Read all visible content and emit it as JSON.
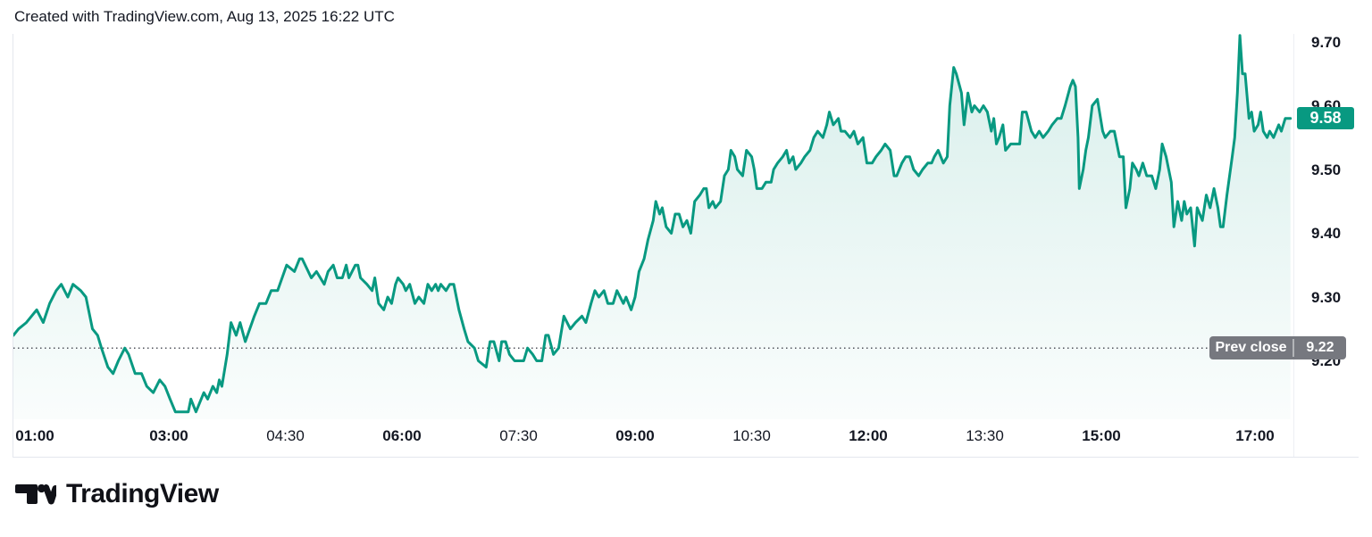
{
  "attribution": "Created with TradingView.com, Aug 13, 2025 16:22 UTC",
  "colors": {
    "line": "#089981",
    "area_top": "rgba(8,153,129,0.16)",
    "area_bottom": "rgba(8,153,129,0.02)",
    "current_badge_bg": "#089981",
    "prev_badge_bg": "#76787f",
    "prev_close_line": "#51535c",
    "axis_text": "#131722",
    "border": "#e4e7ee"
  },
  "price_axis": {
    "ticks": [
      {
        "label": "9.70",
        "price": 9.7
      },
      {
        "label": "9.60",
        "price": 9.6
      },
      {
        "label": "9.50",
        "price": 9.5
      },
      {
        "label": "9.40",
        "price": 9.4
      },
      {
        "label": "9.30",
        "price": 9.3
      },
      {
        "label": "9.20",
        "price": 9.2
      }
    ],
    "current_price": "9.58",
    "prev_close_label": "Prev close",
    "prev_close_value": "9.22"
  },
  "time_axis": {
    "ticks": [
      {
        "label": "01:00",
        "bold": true
      },
      {
        "label": "03:00",
        "bold": true
      },
      {
        "label": "04:30",
        "bold": false
      },
      {
        "label": "06:00",
        "bold": true
      },
      {
        "label": "07:30",
        "bold": false
      },
      {
        "label": "09:00",
        "bold": true
      },
      {
        "label": "10:30",
        "bold": false
      },
      {
        "label": "12:00",
        "bold": true
      },
      {
        "label": "13:30",
        "bold": false
      },
      {
        "label": "15:00",
        "bold": true
      },
      {
        "label": "17:00",
        "bold": true
      }
    ]
  },
  "footer": {
    "brand": "TradingView",
    "logo_icon": "tradingview-mark"
  },
  "chart_data": {
    "type": "area",
    "title": "",
    "xlabel": "",
    "ylabel": "",
    "grid": false,
    "legend": false,
    "ylim": [
      9.1,
      9.72
    ],
    "x_range": [
      "01:00",
      "17:28"
    ],
    "prev_close": 9.22,
    "last_price": 9.58,
    "points": [
      [
        "01:00",
        9.24
      ],
      [
        "01:04",
        9.25
      ],
      [
        "01:10",
        9.26
      ],
      [
        "01:18",
        9.28
      ],
      [
        "01:23",
        9.26
      ],
      [
        "01:28",
        9.29
      ],
      [
        "01:33",
        9.31
      ],
      [
        "01:37",
        9.32
      ],
      [
        "01:42",
        9.3
      ],
      [
        "01:46",
        9.32
      ],
      [
        "01:52",
        9.31
      ],
      [
        "01:56",
        9.3
      ],
      [
        "02:01",
        9.25
      ],
      [
        "02:05",
        9.24
      ],
      [
        "02:08",
        9.22
      ],
      [
        "02:13",
        9.19
      ],
      [
        "02:17",
        9.18
      ],
      [
        "02:21",
        9.2
      ],
      [
        "02:26",
        9.22
      ],
      [
        "02:29",
        9.21
      ],
      [
        "02:34",
        9.18
      ],
      [
        "02:39",
        9.18
      ],
      [
        "02:43",
        9.16
      ],
      [
        "02:48",
        9.15
      ],
      [
        "02:53",
        9.17
      ],
      [
        "02:57",
        9.16
      ],
      [
        "03:01",
        9.14
      ],
      [
        "03:05",
        9.12
      ],
      [
        "03:08",
        9.12
      ],
      [
        "03:12",
        9.12
      ],
      [
        "03:15",
        9.12
      ],
      [
        "03:17",
        9.14
      ],
      [
        "03:21",
        9.12
      ],
      [
        "03:27",
        9.15
      ],
      [
        "03:30",
        9.14
      ],
      [
        "03:34",
        9.16
      ],
      [
        "03:37",
        9.15
      ],
      [
        "03:39",
        9.17
      ],
      [
        "03:41",
        9.16
      ],
      [
        "03:45",
        9.21
      ],
      [
        "03:48",
        9.26
      ],
      [
        "03:52",
        9.24
      ],
      [
        "03:55",
        9.26
      ],
      [
        "03:59",
        9.23
      ],
      [
        "04:06",
        9.27
      ],
      [
        "04:10",
        9.29
      ],
      [
        "04:15",
        9.29
      ],
      [
        "04:19",
        9.31
      ],
      [
        "04:24",
        9.31
      ],
      [
        "04:31",
        9.35
      ],
      [
        "04:37",
        9.34
      ],
      [
        "04:41",
        9.36
      ],
      [
        "04:43",
        9.36
      ],
      [
        "04:50",
        9.33
      ],
      [
        "04:54",
        9.34
      ],
      [
        "05:00",
        9.32
      ],
      [
        "05:03",
        9.34
      ],
      [
        "05:07",
        9.35
      ],
      [
        "05:10",
        9.33
      ],
      [
        "05:14",
        9.33
      ],
      [
        "05:17",
        9.35
      ],
      [
        "05:19",
        9.33
      ],
      [
        "05:24",
        9.35
      ],
      [
        "05:26",
        9.35
      ],
      [
        "05:28",
        9.33
      ],
      [
        "05:33",
        9.32
      ],
      [
        "05:37",
        9.31
      ],
      [
        "05:39",
        9.33
      ],
      [
        "05:42",
        9.29
      ],
      [
        "05:46",
        9.28
      ],
      [
        "05:49",
        9.3
      ],
      [
        "05:52",
        9.29
      ],
      [
        "05:55",
        9.32
      ],
      [
        "05:57",
        9.33
      ],
      [
        "06:01",
        9.32
      ],
      [
        "06:03",
        9.31
      ],
      [
        "06:06",
        9.32
      ],
      [
        "06:10",
        9.29
      ],
      [
        "06:13",
        9.3
      ],
      [
        "06:17",
        9.29
      ],
      [
        "06:20",
        9.32
      ],
      [
        "06:23",
        9.31
      ],
      [
        "06:26",
        9.32
      ],
      [
        "06:28",
        9.31
      ],
      [
        "06:30",
        9.32
      ],
      [
        "06:34",
        9.31
      ],
      [
        "06:37",
        9.32
      ],
      [
        "06:40",
        9.32
      ],
      [
        "06:44",
        9.28
      ],
      [
        "06:48",
        9.25
      ],
      [
        "06:51",
        9.23
      ],
      [
        "06:56",
        9.22
      ],
      [
        "06:59",
        9.2
      ],
      [
        "07:05",
        9.19
      ],
      [
        "07:08",
        9.23
      ],
      [
        "07:11",
        9.23
      ],
      [
        "07:15",
        9.2
      ],
      [
        "07:17",
        9.23
      ],
      [
        "07:20",
        9.23
      ],
      [
        "07:23",
        9.21
      ],
      [
        "07:27",
        9.2
      ],
      [
        "07:30",
        9.2
      ],
      [
        "07:34",
        9.2
      ],
      [
        "07:37",
        9.22
      ],
      [
        "07:41",
        9.21
      ],
      [
        "07:44",
        9.2
      ],
      [
        "07:48",
        9.2
      ],
      [
        "07:51",
        9.24
      ],
      [
        "07:53",
        9.24
      ],
      [
        "07:57",
        9.21
      ],
      [
        "08:01",
        9.22
      ],
      [
        "08:05",
        9.27
      ],
      [
        "08:10",
        9.25
      ],
      [
        "08:14",
        9.26
      ],
      [
        "08:19",
        9.27
      ],
      [
        "08:22",
        9.26
      ],
      [
        "08:26",
        9.29
      ],
      [
        "08:29",
        9.31
      ],
      [
        "08:32",
        9.3
      ],
      [
        "08:36",
        9.31
      ],
      [
        "08:39",
        9.29
      ],
      [
        "08:43",
        9.29
      ],
      [
        "08:46",
        9.31
      ],
      [
        "08:51",
        9.29
      ],
      [
        "08:53",
        9.3
      ],
      [
        "08:57",
        9.28
      ],
      [
        "09:00",
        9.3
      ],
      [
        "09:03",
        9.34
      ],
      [
        "09:07",
        9.36
      ],
      [
        "09:10",
        9.39
      ],
      [
        "09:14",
        9.42
      ],
      [
        "09:16",
        9.45
      ],
      [
        "09:19",
        9.43
      ],
      [
        "09:21",
        9.44
      ],
      [
        "09:24",
        9.41
      ],
      [
        "09:28",
        9.4
      ],
      [
        "09:31",
        9.43
      ],
      [
        "09:34",
        9.43
      ],
      [
        "09:37",
        9.41
      ],
      [
        "09:40",
        9.42
      ],
      [
        "09:43",
        9.4
      ],
      [
        "09:46",
        9.45
      ],
      [
        "09:50",
        9.46
      ],
      [
        "09:53",
        9.47
      ],
      [
        "09:55",
        9.47
      ],
      [
        "09:57",
        9.44
      ],
      [
        "10:00",
        9.45
      ],
      [
        "10:02",
        9.44
      ],
      [
        "10:06",
        9.45
      ],
      [
        "10:09",
        9.49
      ],
      [
        "10:12",
        9.5
      ],
      [
        "10:14",
        9.53
      ],
      [
        "10:17",
        9.52
      ],
      [
        "10:19",
        9.5
      ],
      [
        "10:23",
        9.49
      ],
      [
        "10:26",
        9.53
      ],
      [
        "10:30",
        9.52
      ],
      [
        "10:32",
        9.5
      ],
      [
        "10:34",
        9.47
      ],
      [
        "10:38",
        9.47
      ],
      [
        "10:41",
        9.48
      ],
      [
        "10:45",
        9.48
      ],
      [
        "10:47",
        9.5
      ],
      [
        "10:50",
        9.51
      ],
      [
        "10:54",
        9.52
      ],
      [
        "10:57",
        9.53
      ],
      [
        "10:59",
        9.51
      ],
      [
        "11:02",
        9.52
      ],
      [
        "11:04",
        9.5
      ],
      [
        "11:08",
        9.51
      ],
      [
        "11:11",
        9.52
      ],
      [
        "11:15",
        9.53
      ],
      [
        "11:18",
        9.55
      ],
      [
        "11:21",
        9.56
      ],
      [
        "11:25",
        9.55
      ],
      [
        "11:28",
        9.57
      ],
      [
        "11:30",
        9.59
      ],
      [
        "11:33",
        9.57
      ],
      [
        "11:37",
        9.58
      ],
      [
        "11:39",
        9.56
      ],
      [
        "11:42",
        9.56
      ],
      [
        "11:46",
        9.55
      ],
      [
        "11:49",
        9.56
      ],
      [
        "11:52",
        9.54
      ],
      [
        "11:56",
        9.55
      ],
      [
        "11:59",
        9.51
      ],
      [
        "12:03",
        9.51
      ],
      [
        "12:06",
        9.52
      ],
      [
        "12:10",
        9.53
      ],
      [
        "12:13",
        9.54
      ],
      [
        "12:17",
        9.53
      ],
      [
        "12:20",
        9.49
      ],
      [
        "12:22",
        9.49
      ],
      [
        "12:26",
        9.51
      ],
      [
        "12:29",
        9.52
      ],
      [
        "12:32",
        9.52
      ],
      [
        "12:35",
        9.5
      ],
      [
        "12:39",
        9.49
      ],
      [
        "12:42",
        9.5
      ],
      [
        "12:46",
        9.51
      ],
      [
        "12:49",
        9.51
      ],
      [
        "12:51",
        9.52
      ],
      [
        "12:54",
        9.53
      ],
      [
        "12:58",
        9.51
      ],
      [
        "13:01",
        9.52
      ],
      [
        "13:03",
        9.6
      ],
      [
        "13:06",
        9.66
      ],
      [
        "13:08",
        9.65
      ],
      [
        "13:12",
        9.62
      ],
      [
        "13:14",
        9.57
      ],
      [
        "13:17",
        9.62
      ],
      [
        "13:20",
        9.59
      ],
      [
        "13:22",
        9.6
      ],
      [
        "13:26",
        9.59
      ],
      [
        "13:29",
        9.6
      ],
      [
        "13:32",
        9.59
      ],
      [
        "13:35",
        9.56
      ],
      [
        "13:37",
        9.58
      ],
      [
        "13:39",
        9.54
      ],
      [
        "13:41",
        9.55
      ],
      [
        "13:44",
        9.57
      ],
      [
        "13:46",
        9.53
      ],
      [
        "13:50",
        9.54
      ],
      [
        "13:53",
        9.54
      ],
      [
        "13:57",
        9.54
      ],
      [
        "13:59",
        9.59
      ],
      [
        "14:02",
        9.59
      ],
      [
        "14:06",
        9.56
      ],
      [
        "14:09",
        9.55
      ],
      [
        "14:12",
        9.56
      ],
      [
        "14:15",
        9.55
      ],
      [
        "14:19",
        9.56
      ],
      [
        "14:22",
        9.57
      ],
      [
        "14:26",
        9.58
      ],
      [
        "14:29",
        9.58
      ],
      [
        "14:32",
        9.6
      ],
      [
        "14:36",
        9.63
      ],
      [
        "14:38",
        9.64
      ],
      [
        "14:40",
        9.63
      ],
      [
        "14:42",
        9.55
      ],
      [
        "14:43",
        9.47
      ],
      [
        "14:46",
        9.5
      ],
      [
        "14:48",
        9.53
      ],
      [
        "14:50",
        9.55
      ],
      [
        "14:53",
        9.6
      ],
      [
        "14:57",
        9.61
      ],
      [
        "15:01",
        9.56
      ],
      [
        "15:03",
        9.55
      ],
      [
        "15:07",
        9.56
      ],
      [
        "15:10",
        9.56
      ],
      [
        "15:14",
        9.52
      ],
      [
        "15:17",
        9.52
      ],
      [
        "15:19",
        9.44
      ],
      [
        "15:22",
        9.47
      ],
      [
        "15:24",
        9.51
      ],
      [
        "15:27",
        9.5
      ],
      [
        "15:29",
        9.49
      ],
      [
        "15:32",
        9.51
      ],
      [
        "15:35",
        9.49
      ],
      [
        "15:39",
        9.49
      ],
      [
        "15:42",
        9.47
      ],
      [
        "15:45",
        9.5
      ],
      [
        "15:47",
        9.54
      ],
      [
        "15:50",
        9.52
      ],
      [
        "15:52",
        9.5
      ],
      [
        "15:54",
        9.48
      ],
      [
        "15:56",
        9.41
      ],
      [
        "15:59",
        9.45
      ],
      [
        "16:02",
        9.42
      ],
      [
        "16:04",
        9.45
      ],
      [
        "16:06",
        9.43
      ],
      [
        "16:09",
        9.44
      ],
      [
        "16:12",
        9.38
      ],
      [
        "16:14",
        9.44
      ],
      [
        "16:18",
        9.42
      ],
      [
        "16:21",
        9.46
      ],
      [
        "16:24",
        9.44
      ],
      [
        "16:27",
        9.47
      ],
      [
        "16:30",
        9.44
      ],
      [
        "16:32",
        9.41
      ],
      [
        "16:34",
        9.41
      ],
      [
        "16:37",
        9.46
      ],
      [
        "16:41",
        9.52
      ],
      [
        "16:43",
        9.55
      ],
      [
        "16:45",
        9.62
      ],
      [
        "16:47",
        9.71
      ],
      [
        "16:49",
        9.65
      ],
      [
        "16:51",
        9.65
      ],
      [
        "16:54",
        9.58
      ],
      [
        "16:56",
        9.59
      ],
      [
        "16:58",
        9.56
      ],
      [
        "17:01",
        9.57
      ],
      [
        "17:03",
        9.59
      ],
      [
        "17:05",
        9.56
      ],
      [
        "17:08",
        9.55
      ],
      [
        "17:10",
        9.56
      ],
      [
        "17:13",
        9.55
      ],
      [
        "17:17",
        9.57
      ],
      [
        "17:19",
        9.56
      ],
      [
        "17:22",
        9.58
      ],
      [
        "17:26",
        9.58
      ]
    ]
  }
}
